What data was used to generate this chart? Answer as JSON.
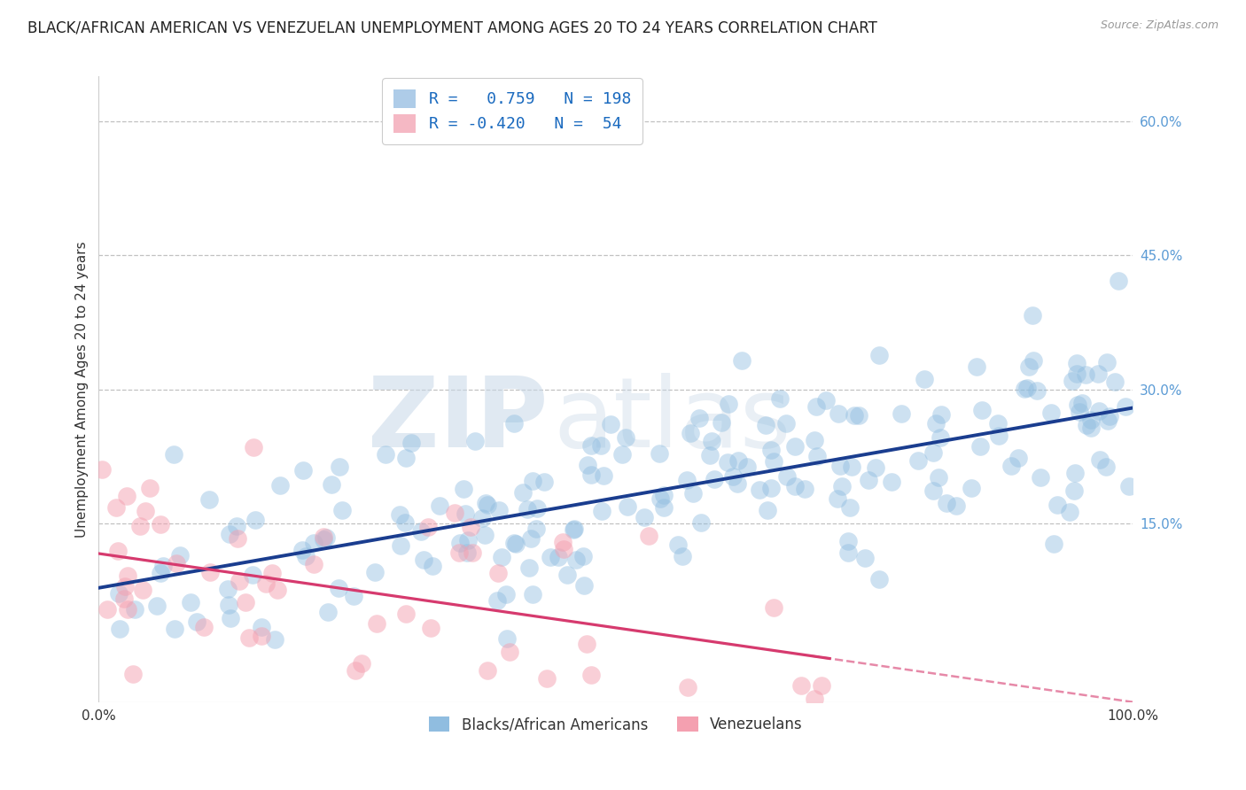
{
  "title": "BLACK/AFRICAN AMERICAN VS VENEZUELAN UNEMPLOYMENT AMONG AGES 20 TO 24 YEARS CORRELATION CHART",
  "source_text": "Source: ZipAtlas.com",
  "ylabel": "Unemployment Among Ages 20 to 24 years",
  "xlim": [
    0.0,
    1.0
  ],
  "ylim": [
    -0.05,
    0.65
  ],
  "yticks": [
    0.15,
    0.3,
    0.45,
    0.6
  ],
  "ytick_labels": [
    "15.0%",
    "30.0%",
    "45.0%",
    "60.0%"
  ],
  "blue_R": 0.759,
  "blue_N": 198,
  "pink_R": -0.42,
  "pink_N": 54,
  "blue_color": "#90bde0",
  "pink_color": "#f4a0b0",
  "blue_line_color": "#1a3d8f",
  "pink_line_color": "#d63a6e",
  "legend_blue_label": "R =   0.759   N = 198",
  "legend_pink_label": "R = -0.420   N =  54",
  "legend1_label": "Blacks/African Americans",
  "legend2_label": "Venezuelans",
  "watermark_zip": "ZIP",
  "watermark_atlas": "atlas",
  "background_color": "#ffffff",
  "grid_color": "#bbbbbb",
  "title_fontsize": 12,
  "axis_fontsize": 11,
  "tick_fontsize": 11,
  "blue_seed": 42,
  "pink_seed": 99
}
